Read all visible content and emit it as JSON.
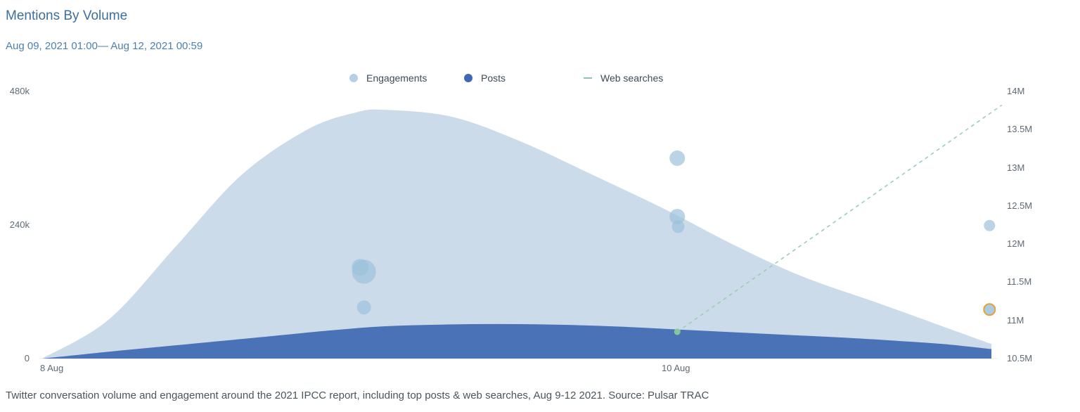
{
  "header": {
    "title": "Mentions By Volume",
    "date_range": "Aug 09, 2021 01:00— Aug 12, 2021 00:59"
  },
  "legend": {
    "engagements": "Engagements",
    "posts": "Posts",
    "web_searches": "Web searches"
  },
  "colors": {
    "engagements_marker": "#b5cfe4",
    "posts_marker": "#3e69b3",
    "web_searches_marker": "#8fc4ad",
    "title_text": "#3c6e9e",
    "bubble_highlight_ring": "#e2a33c"
  },
  "caption": "Twitter conversation volume and engagement around the 2021 IPCC report, including top posts & web searches, Aug 9-12 2021. Source: Pulsar TRAC",
  "chart_data": {
    "type": "area",
    "title": "Mentions By Volume",
    "x_axis": {
      "ticks": [
        "8 Aug",
        "10 Aug"
      ]
    },
    "left_axis": {
      "unit": "k",
      "range": [
        0,
        480
      ],
      "ticks": [
        "480k",
        "240k",
        "0"
      ]
    },
    "right_axis": {
      "unit": "M",
      "range": [
        10.5,
        14
      ],
      "ticks": [
        "14M",
        "13.5M",
        "13M",
        "12.5M",
        "12M",
        "11.5M",
        "11M",
        "10.5M"
      ]
    },
    "grid": "off",
    "legend_position": "top-center",
    "series": [
      {
        "name": "Engagements",
        "type": "area",
        "axis": "left",
        "color": "#ccdbe9",
        "points": [
          [
            0,
            0
          ],
          [
            0.07,
            70
          ],
          [
            0.14,
            200
          ],
          [
            0.21,
            330
          ],
          [
            0.28,
            412
          ],
          [
            0.33,
            442
          ],
          [
            0.36,
            447
          ],
          [
            0.43,
            435
          ],
          [
            0.5,
            393
          ],
          [
            0.58,
            330
          ],
          [
            0.66,
            265
          ],
          [
            0.73,
            203
          ],
          [
            0.8,
            148
          ],
          [
            0.88,
            100
          ],
          [
            0.95,
            57
          ],
          [
            1,
            26
          ]
        ]
      },
      {
        "name": "Posts",
        "type": "area",
        "axis": "left",
        "color": "#4a72b7",
        "points": [
          [
            0,
            0
          ],
          [
            0.08,
            14
          ],
          [
            0.16,
            27
          ],
          [
            0.24,
            40
          ],
          [
            0.3,
            50
          ],
          [
            0.36,
            58
          ],
          [
            0.42,
            61
          ],
          [
            0.48,
            62
          ],
          [
            0.54,
            61
          ],
          [
            0.6,
            58
          ],
          [
            0.66,
            53
          ],
          [
            0.72,
            48
          ],
          [
            0.78,
            43
          ],
          [
            0.84,
            38
          ],
          [
            0.9,
            32
          ],
          [
            0.95,
            26
          ],
          [
            1,
            17
          ]
        ]
      },
      {
        "name": "Web searches",
        "type": "dashed-line",
        "axis": "right",
        "color": "#9bcfb4",
        "points": [
          [
            0.669,
            10.85
          ],
          [
            1.011,
            13.82
          ]
        ]
      }
    ],
    "start_marker": {
      "x": 0.669,
      "value": 10.85,
      "color": "#84c79c",
      "r": 4.5
    },
    "bubbles": {
      "fill": "#9dc2db",
      "opacity": 0.7,
      "items": [
        {
          "x": 0.339,
          "value": 156,
          "r": 17
        },
        {
          "x": 0.335,
          "value": 164,
          "r": 12
        },
        {
          "x": 0.339,
          "value": 92,
          "r": 10
        },
        {
          "x": 0.669,
          "value": 360,
          "r": 11
        },
        {
          "x": 0.669,
          "value": 255,
          "r": 11
        },
        {
          "x": 0.67,
          "value": 237,
          "r": 9
        },
        {
          "x": 0.998,
          "value": 239,
          "r": 8
        },
        {
          "x": 0.998,
          "value": 88,
          "r": 8,
          "highlight": true,
          "highlight_stroke": "#e2a33c"
        }
      ]
    }
  }
}
